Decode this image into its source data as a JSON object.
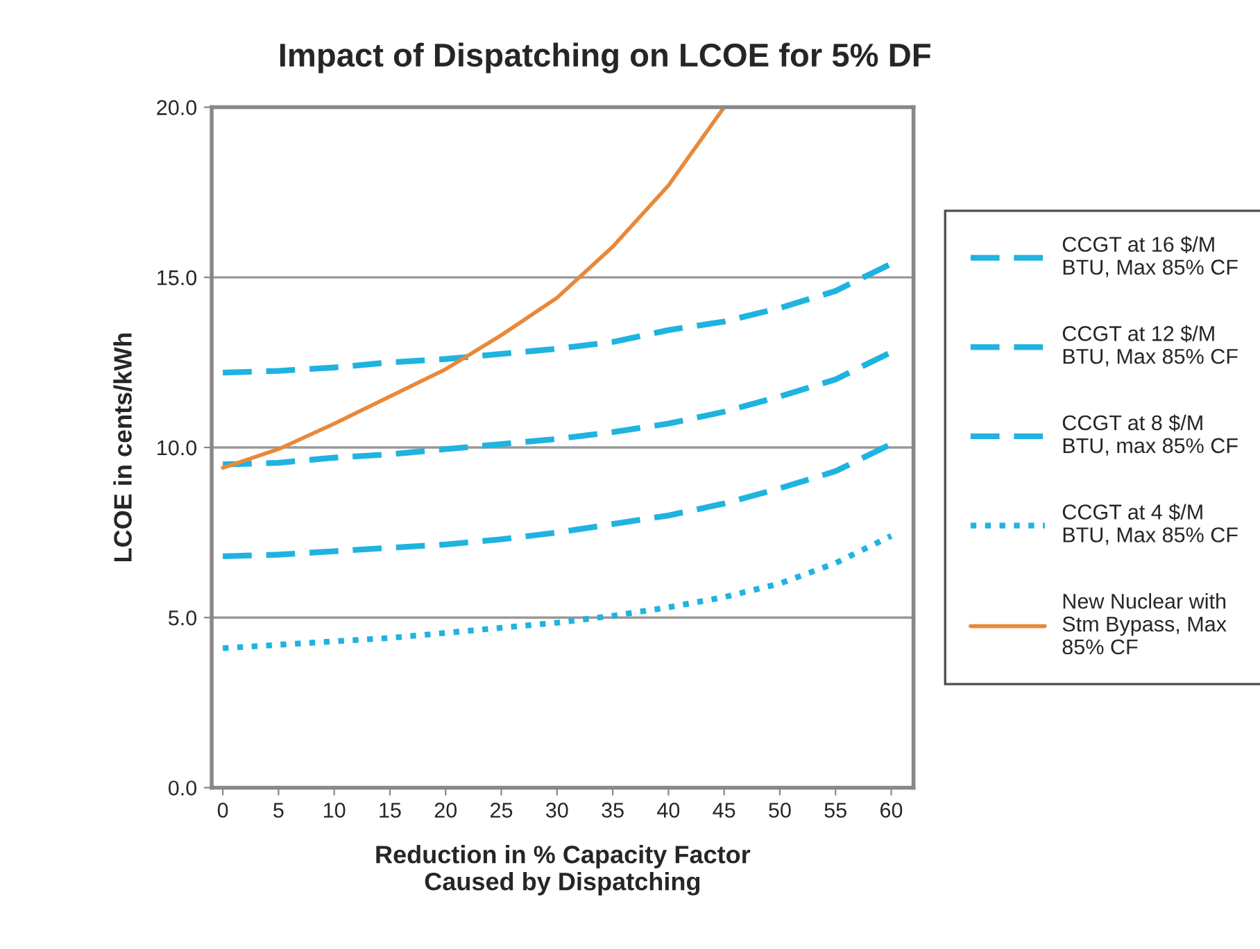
{
  "chart_data": {
    "type": "line",
    "title": "Impact of Dispatching on LCOE for 5% DF",
    "xlabel": "Reduction in % Capacity Factor\nCaused by Dispatching",
    "ylabel": "LCOE in cents/kWh",
    "x": [
      0,
      5,
      10,
      15,
      20,
      25,
      30,
      35,
      40,
      45,
      50,
      55,
      60
    ],
    "series": [
      {
        "name": "CCGT at 16 $/M\nBTU, Max 85% CF",
        "color": "#1fb3e0",
        "line_style": "dashed",
        "values": [
          12.2,
          12.25,
          12.35,
          12.5,
          12.6,
          12.75,
          12.9,
          13.1,
          13.45,
          13.7,
          14.1,
          14.6,
          15.4
        ]
      },
      {
        "name": "CCGT at 12 $/M\nBTU, Max 85% CF",
        "color": "#1fb3e0",
        "line_style": "dashed",
        "values": [
          9.5,
          9.55,
          9.7,
          9.8,
          9.95,
          10.1,
          10.25,
          10.45,
          10.7,
          11.05,
          11.5,
          12.0,
          12.8
        ]
      },
      {
        "name": "CCGT at 8 $/M\nBTU, max 85% CF",
        "color": "#1fb3e0",
        "line_style": "dashed",
        "values": [
          6.8,
          6.85,
          6.95,
          7.05,
          7.15,
          7.3,
          7.5,
          7.75,
          8.0,
          8.35,
          8.8,
          9.3,
          10.1
        ]
      },
      {
        "name": "CCGT at 4 $/M\nBTU, Max 85% CF",
        "color": "#1fb3e0",
        "line_style": "dotted",
        "values": [
          4.1,
          4.2,
          4.3,
          4.4,
          4.55,
          4.7,
          4.85,
          5.05,
          5.3,
          5.6,
          6.0,
          6.6,
          7.4
        ]
      },
      {
        "name": "New Nuclear with\nStm Bypass, Max\n85% CF",
        "color": "#e8893a",
        "line_style": "solid",
        "x": [
          0,
          5,
          10,
          15,
          20,
          25,
          30,
          35,
          40,
          45
        ],
        "values": [
          9.4,
          9.95,
          10.7,
          11.5,
          12.3,
          13.3,
          14.4,
          15.9,
          17.7,
          20.0
        ]
      }
    ],
    "xlim": [
      -1,
      62
    ],
    "xticks": [
      0,
      5,
      10,
      15,
      20,
      25,
      30,
      35,
      40,
      45,
      50,
      55,
      60
    ],
    "ylim": [
      0,
      20
    ],
    "yticks": [
      {
        "value": 0,
        "label": "0.0"
      },
      {
        "value": 5,
        "label": "5.0"
      },
      {
        "value": 10,
        "label": "10.0"
      },
      {
        "value": 15,
        "label": "15.0"
      },
      {
        "value": 20,
        "label": "20.0"
      }
    ],
    "grid": "y",
    "legend": "right"
  }
}
